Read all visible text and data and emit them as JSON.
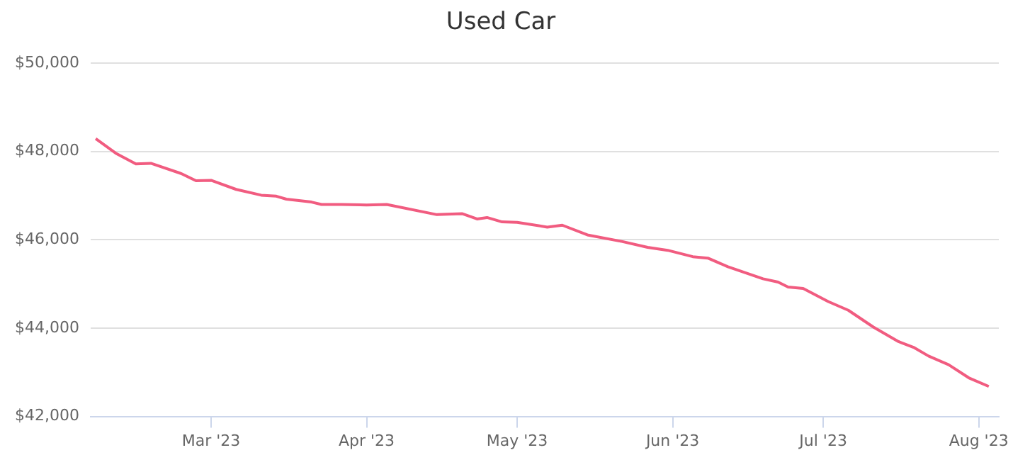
{
  "chart_data": {
    "type": "line",
    "title": "Used Car",
    "x": [
      "2023-02-06",
      "2023-02-10",
      "2023-02-14",
      "2023-02-17",
      "2023-02-23",
      "2023-02-26",
      "2023-03-01",
      "2023-03-06",
      "2023-03-11",
      "2023-03-14",
      "2023-03-16",
      "2023-03-21",
      "2023-03-23",
      "2023-03-27",
      "2023-04-01",
      "2023-04-05",
      "2023-04-15",
      "2023-04-20",
      "2023-04-23",
      "2023-04-25",
      "2023-04-28",
      "2023-05-01",
      "2023-05-07",
      "2023-05-10",
      "2023-05-15",
      "2023-05-22",
      "2023-05-27",
      "2023-05-31",
      "2023-06-05",
      "2023-06-08",
      "2023-06-12",
      "2023-06-19",
      "2023-06-22",
      "2023-06-24",
      "2023-06-27",
      "2023-07-02",
      "2023-07-06",
      "2023-07-11",
      "2023-07-16",
      "2023-07-19",
      "2023-07-22",
      "2023-07-26",
      "2023-07-30",
      "2023-08-03"
    ],
    "series": [
      {
        "color": "#f15c80",
        "values": [
          48285,
          47957,
          47715,
          47728,
          47498,
          47334,
          47344,
          47138,
          47007,
          46984,
          46918,
          46852,
          46797,
          46797,
          46787,
          46797,
          46567,
          46590,
          46469,
          46502,
          46403,
          46393,
          46285,
          46328,
          46108,
          45957,
          45826,
          45760,
          45616,
          45584,
          45387,
          45115,
          45040,
          44928,
          44895,
          44600,
          44403,
          44023,
          43695,
          43564,
          43367,
          43170,
          42875,
          42679
        ]
      }
    ],
    "xlim": [
      "2023-02-05",
      "2023-08-05"
    ],
    "xticks": [
      {
        "value": "2023-03-01",
        "label": "Mar '23"
      },
      {
        "value": "2023-04-01",
        "label": "Apr '23"
      },
      {
        "value": "2023-05-01",
        "label": "May '23"
      },
      {
        "value": "2023-06-01",
        "label": "Jun '23"
      },
      {
        "value": "2023-07-01",
        "label": "Jul '23"
      },
      {
        "value": "2023-08-01",
        "label": "Aug '23"
      }
    ],
    "ylim": [
      42000,
      50000
    ],
    "yticks": [
      {
        "value": 42000,
        "label": "$42,000"
      },
      {
        "value": 44000,
        "label": "$44,000"
      },
      {
        "value": 46000,
        "label": "$46,000"
      },
      {
        "value": 48000,
        "label": "$48,000"
      },
      {
        "value": 50000,
        "label": "$50,000"
      }
    ],
    "grid": "y",
    "legend": false,
    "marker": "none",
    "line_style": "solid"
  }
}
